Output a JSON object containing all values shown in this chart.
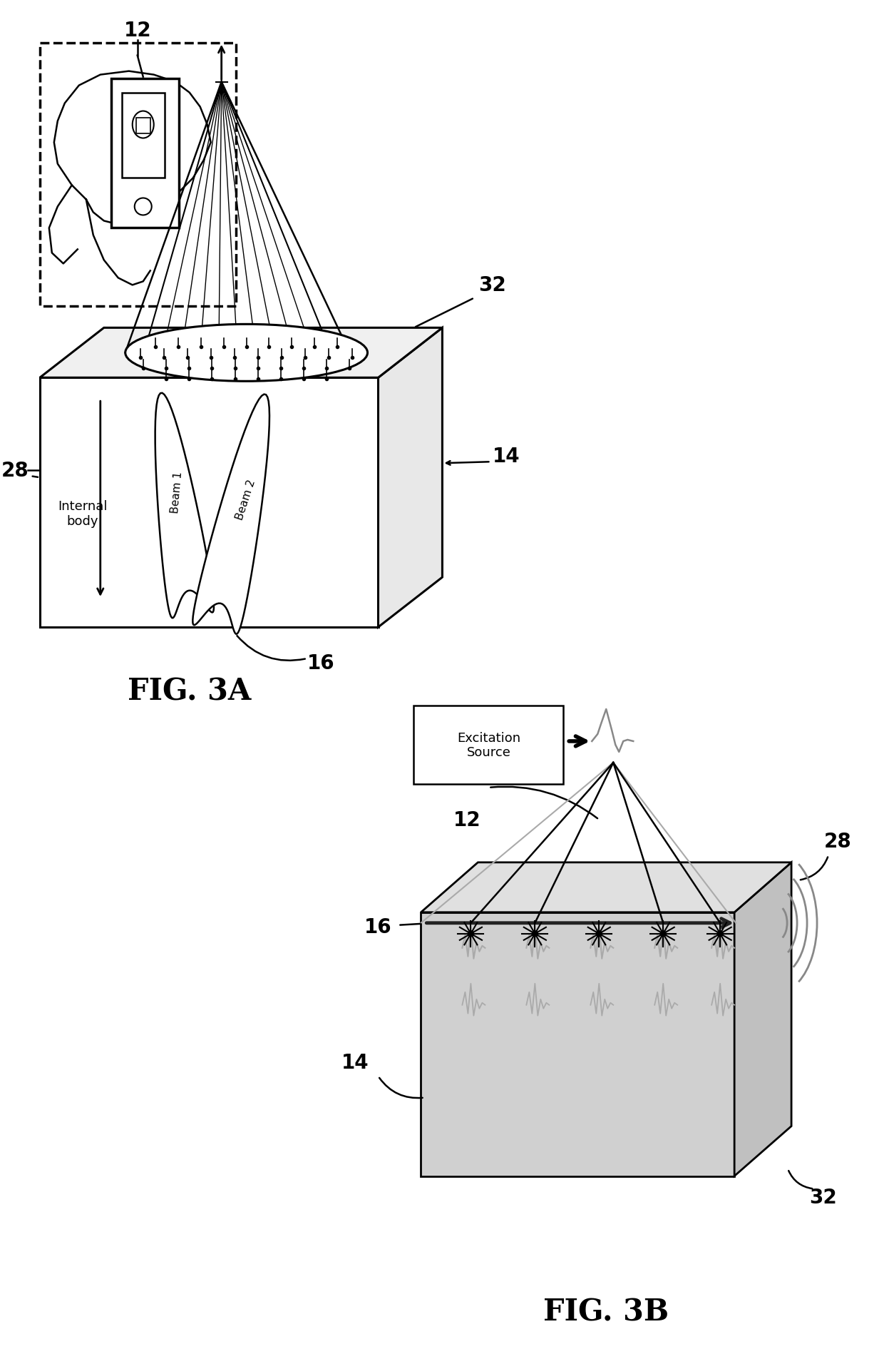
{
  "bg_color": "#ffffff",
  "fig_width": 12.4,
  "fig_height": 19.06,
  "fig3a_title": "FIG. 3A",
  "fig3b_title": "FIG. 3B",
  "label_12": "12",
  "label_14": "14",
  "label_16": "16",
  "label_28": "28",
  "label_32": "32",
  "label_beam1": "Beam 1",
  "label_beam2": "Beam 2",
  "label_internal": "Internal\nbody",
  "label_excitation": "Excitation\nSource",
  "line_color": "#000000",
  "gray_color": "#aaaaaa",
  "body_fill_3a": "#f0f0f0",
  "body_fill_3b": "#cccccc",
  "body_fill_3b_top": "#d8d8d8"
}
